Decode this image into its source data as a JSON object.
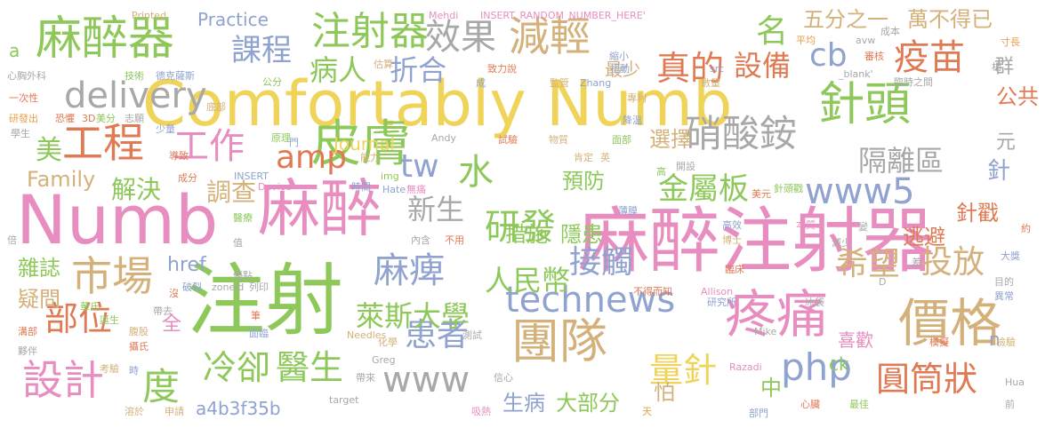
{
  "palette": [
    "#f0d45a",
    "#8ec85a",
    "#e88dc0",
    "#e07a55",
    "#d4b17a",
    "#8fa2d0",
    "#a8a8a8",
    "#e5a04a"
  ],
  "words": [
    {
      "text": "Comfortably Numb",
      "color": "#f0d45a"
    },
    {
      "text": "麻醉注射器",
      "color": "#e88dc0"
    },
    {
      "text": "Numb",
      "color": "#e88dc0"
    },
    {
      "text": "麻醉",
      "color": "#e88dc0"
    },
    {
      "text": "注射",
      "color": "#8ec85a"
    },
    {
      "text": "麻醉器",
      "color": "#8ec85a"
    },
    {
      "text": "皮膚",
      "color": "#8ec85a"
    },
    {
      "text": "針頭",
      "color": "#8ec85a"
    },
    {
      "text": "疼痛",
      "color": "#e88dc0"
    },
    {
      "text": "價格",
      "color": "#d4b17a"
    },
    {
      "text": "團隊",
      "color": "#d4b17a"
    },
    {
      "text": "硝酸銨",
      "color": "#a8a8a8"
    },
    {
      "text": "減輕",
      "color": "#d4b17a"
    },
    {
      "text": "注射器",
      "color": "#8ec85a"
    },
    {
      "text": "工程",
      "color": "#e07a55"
    },
    {
      "text": "市場",
      "color": "#d4b17a"
    },
    {
      "text": "www5",
      "color": "#8fa2d0"
    },
    {
      "text": "technews",
      "color": "#8fa2d0"
    },
    {
      "text": "www",
      "color": "#a8a8a8"
    },
    {
      "text": "delivery",
      "color": "#a8a8a8"
    },
    {
      "text": "疫苗",
      "color": "#e07a55"
    },
    {
      "text": "量針",
      "color": "#f0d45a"
    },
    {
      "text": "圓筒狀",
      "color": "#e07a55"
    },
    {
      "text": "麻痺",
      "color": "#8fa2d0"
    },
    {
      "text": "研發",
      "color": "#8ec85a"
    },
    {
      "text": "真的",
      "color": "#e07a55"
    },
    {
      "text": "金屬板",
      "color": "#8ec85a"
    },
    {
      "text": "效果",
      "color": "#a8a8a8"
    },
    {
      "text": "工作",
      "color": "#e88dc0"
    },
    {
      "text": "設計",
      "color": "#e88dc0"
    },
    {
      "text": "部位",
      "color": "#e07a55"
    },
    {
      "text": "冷卻",
      "color": "#8ec85a"
    },
    {
      "text": "醫生",
      "color": "#8ec85a"
    },
    {
      "text": "患者",
      "color": "#8fa2d0"
    },
    {
      "text": "接觸",
      "color": "#8fa2d0"
    },
    {
      "text": "希望",
      "color": "#d4b17a"
    },
    {
      "text": "投放",
      "color": "#d4b17a"
    },
    {
      "text": "php",
      "color": "#8fa2d0"
    },
    {
      "text": "萊斯大學",
      "color": "#8ec85a"
    },
    {
      "text": "人民幣",
      "color": "#8ec85a"
    },
    {
      "text": "隔離區",
      "color": "#a8a8a8"
    },
    {
      "text": "課程",
      "color": "#8fa2d0"
    },
    {
      "text": "amp",
      "color": "#e07a55"
    },
    {
      "text": "tw",
      "color": "#8fa2d0"
    },
    {
      "text": "水",
      "color": "#8ec85a"
    },
    {
      "text": "cb",
      "color": "#8fa2d0"
    },
    {
      "text": "名",
      "color": "#8ec85a"
    },
    {
      "text": "病人",
      "color": "#8ec85a"
    },
    {
      "text": "折合",
      "color": "#8fa2d0"
    },
    {
      "text": "設備",
      "color": "#e07a55"
    },
    {
      "text": "新生",
      "color": "#a8a8a8"
    },
    {
      "text": "度",
      "color": "#8ec85a"
    },
    {
      "text": "解決",
      "color": "#8ec85a"
    },
    {
      "text": "調查",
      "color": "#d4b17a"
    },
    {
      "text": "Family",
      "color": "#d4b17a"
    },
    {
      "text": "Journal",
      "color": "#f0d45a"
    },
    {
      "text": "Practice",
      "color": "#8fa2d0"
    },
    {
      "text": "a4b3f35b",
      "color": "#8fa2d0"
    },
    {
      "text": "措施",
      "color": "#8ec85a"
    },
    {
      "text": "隱患",
      "color": "#8ec85a"
    },
    {
      "text": "預防",
      "color": "#8ec85a"
    },
    {
      "text": "選擇",
      "color": "#d4b17a"
    },
    {
      "text": "逃避",
      "color": "#e07a55"
    },
    {
      "text": "針戳",
      "color": "#e07a55"
    },
    {
      "text": "公共",
      "color": "#e07a55"
    },
    {
      "text": "五分之一",
      "color": "#d4b17a"
    },
    {
      "text": "萬不得已",
      "color": "#d4b17a"
    },
    {
      "text": "最少",
      "color": "#d4b17a"
    },
    {
      "text": "雜誌",
      "color": "#8ec85a"
    },
    {
      "text": "疑問",
      "color": "#d4b17a"
    },
    {
      "text": "href",
      "color": "#8fa2d0"
    },
    {
      "text": "喜歡",
      "color": "#e88dc0"
    },
    {
      "text": "ck",
      "color": "#8ec85a"
    },
    {
      "text": "怕",
      "color": "#d4b17a"
    },
    {
      "text": "生病",
      "color": "#8fa2d0"
    },
    {
      "text": "大部分",
      "color": "#8ec85a"
    },
    {
      "text": "中",
      "color": "#8ec85a"
    },
    {
      "text": "美",
      "color": "#8ec85a"
    },
    {
      "text": "針",
      "color": "#8fa2d0"
    },
    {
      "text": "元",
      "color": "#a8a8a8"
    },
    {
      "text": "群",
      "color": "#a8a8a8"
    },
    {
      "text": "a",
      "color": "#8ec85a"
    },
    {
      "text": "n",
      "color": "#8fa2d0"
    },
    {
      "text": "全",
      "color": "#e88dc0"
    },
    {
      "text": "Printed",
      "color": "#d4b17a"
    },
    {
      "text": "Mehdi",
      "color": "#e88dc0"
    },
    {
      "text": "INSERT_RANDOM_NUMBER_HERE'",
      "color": "#e88dc0"
    },
    {
      "text": "平均",
      "color": "#e5a04a"
    },
    {
      "text": "avw",
      "color": "#a8a8a8"
    },
    {
      "text": "成本",
      "color": "#a8a8a8"
    },
    {
      "text": "寸長",
      "color": "#e5a04a"
    },
    {
      "text": "審核",
      "color": "#e07a55"
    },
    {
      "text": "相",
      "color": "#a8a8a8"
    },
    {
      "text": "臨時之間",
      "color": "#a8a8a8"
    },
    {
      "text": "心胸外科",
      "color": "#a8a8a8"
    },
    {
      "text": "技術",
      "color": "#8ec85a"
    },
    {
      "text": "德克薩斯",
      "color": "#8fa2d0"
    },
    {
      "text": "估算",
      "color": "#d4b17a"
    },
    {
      "text": "致力說",
      "color": "#e07a55"
    },
    {
      "text": "扭動",
      "color": "#8fa2d0"
    },
    {
      "text": "src",
      "color": "#8fa2d0"
    },
    {
      "text": "數量",
      "color": "#d4b17a"
    },
    {
      "text": "_blank'",
      "color": "#a8a8a8"
    },
    {
      "text": "一次性",
      "color": "#e07a55"
    },
    {
      "text": "公分",
      "color": "#8ec85a"
    },
    {
      "text": "成",
      "color": "#8fa2d0"
    },
    {
      "text": "監管",
      "color": "#d4b17a"
    },
    {
      "text": "Zhang",
      "color": "#8fa2d0"
    },
    {
      "text": "專利",
      "color": "#d4b17a"
    },
    {
      "text": "研發出",
      "color": "#e5a04a"
    },
    {
      "text": "恐懼",
      "color": "#e07a55"
    },
    {
      "text": "3D",
      "color": "#e07a55"
    },
    {
      "text": "美分",
      "color": "#8ec85a"
    },
    {
      "text": "志願",
      "color": "#a8a8a8"
    },
    {
      "text": "底部",
      "color": "#d4b17a"
    },
    {
      "text": "降溫",
      "color": "#8fa2d0"
    },
    {
      "text": "學生",
      "color": "#a8a8a8"
    },
    {
      "text": "少量",
      "color": "#8fa2d0"
    },
    {
      "text": "原理",
      "color": "#8ec85a"
    },
    {
      "text": "門",
      "color": "#8fa2d0"
    },
    {
      "text": "Andy",
      "color": "#a8a8a8"
    },
    {
      "text": "試驗",
      "color": "#e07a55"
    },
    {
      "text": "物質",
      "color": "#d4b17a"
    },
    {
      "text": "面部",
      "color": "#8ec85a"
    },
    {
      "text": "開設",
      "color": "#a8a8a8"
    },
    {
      "text": "導致",
      "color": "#e07a55"
    },
    {
      "text": "能力",
      "color": "#d4b17a"
    },
    {
      "text": "肯定",
      "color": "#d4b17a"
    },
    {
      "text": "英",
      "color": "#d4b17a"
    },
    {
      "text": "成分",
      "color": "#e07a55"
    },
    {
      "text": "INSERT",
      "color": "#8fa2d0"
    },
    {
      "text": "img",
      "color": "#8ec85a"
    },
    {
      "text": "高",
      "color": "#8ec85a"
    },
    {
      "text": "Device",
      "color": "#e88dc0"
    },
    {
      "text": "時間",
      "color": "#8fa2d0"
    },
    {
      "text": "Hate",
      "color": "#8fa2d0"
    },
    {
      "text": "無痛",
      "color": "#e88dc0"
    },
    {
      "text": "美元",
      "color": "#e07a55"
    },
    {
      "text": "針頭戳",
      "color": "#8ec85a"
    },
    {
      "text": "薄膜",
      "color": "#8fa2d0"
    },
    {
      "text": "醫療",
      "color": "#8ec85a"
    },
    {
      "text": "高效",
      "color": "#8fa2d0"
    },
    {
      "text": "本質",
      "color": "#e88dc0"
    },
    {
      "text": "倍",
      "color": "#a8a8a8"
    },
    {
      "text": "值",
      "color": "#a8a8a8"
    },
    {
      "text": "內含",
      "color": "#a8a8a8"
    },
    {
      "text": "不用",
      "color": "#e07a55"
    },
    {
      "text": "博士",
      "color": "#d4b17a"
    },
    {
      "text": "減少",
      "color": "#a8a8a8"
    },
    {
      "text": "變",
      "color": "#a8a8a8"
    },
    {
      "text": "約",
      "color": "#e07a55"
    },
    {
      "text": "大獎",
      "color": "#8fa2d0"
    },
    {
      "text": "差",
      "color": "#a8a8a8"
    },
    {
      "text": "破裂",
      "color": "#8fa2d0"
    },
    {
      "text": "zoneid",
      "color": "#a8a8a8"
    },
    {
      "text": "列印",
      "color": "#a8a8a8"
    },
    {
      "text": "優點",
      "color": "#a8a8a8"
    },
    {
      "text": "臨床",
      "color": "#e07a55"
    },
    {
      "text": "D",
      "color": "#a8a8a8"
    },
    {
      "text": "目的",
      "color": "#a8a8a8"
    },
    {
      "text": "沒",
      "color": "#e07a55"
    },
    {
      "text": "Allison",
      "color": "#e88dc0"
    },
    {
      "text": "不得而知",
      "color": "#e07a55"
    },
    {
      "text": "異常",
      "color": "#8fa2d0"
    },
    {
      "text": "研究所",
      "color": "#8fa2d0"
    },
    {
      "text": "冰袋",
      "color": "#a8a8a8"
    },
    {
      "text": "華氏",
      "color": "#8ec85a"
    },
    {
      "text": "帶去",
      "color": "#a8a8a8"
    },
    {
      "text": "筆",
      "color": "#e07a55"
    },
    {
      "text": "誕生",
      "color": "#8ec85a"
    },
    {
      "text": "腹股",
      "color": "#d4b17a"
    },
    {
      "text": "面臨",
      "color": "#8fa2d0"
    },
    {
      "text": "Mike",
      "color": "#a8a8a8"
    },
    {
      "text": "溝部",
      "color": "#e07a55"
    },
    {
      "text": "攝氏",
      "color": "#e07a55"
    },
    {
      "text": "化學",
      "color": "#d4b17a"
    },
    {
      "text": "測試",
      "color": "#a8a8a8"
    },
    {
      "text": "Needles",
      "color": "#d4b17a"
    },
    {
      "text": "模擬",
      "color": "#e07a55"
    },
    {
      "text": "檢驗",
      "color": "#d4b17a"
    },
    {
      "text": "夥伴",
      "color": "#a8a8a8"
    },
    {
      "text": "考驗",
      "color": "#d4b17a"
    },
    {
      "text": "Greg",
      "color": "#a8a8a8"
    },
    {
      "text": "Razadi",
      "color": "#e88dc0"
    },
    {
      "text": "時",
      "color": "#8fa2d0"
    },
    {
      "text": "帶來",
      "color": "#a8a8a8"
    },
    {
      "text": "信心",
      "color": "#a8a8a8"
    },
    {
      "text": "Hua",
      "color": "#a8a8a8"
    },
    {
      "text": "溶於",
      "color": "#d4b17a"
    },
    {
      "text": "申請",
      "color": "#d4b17a"
    },
    {
      "text": "target",
      "color": "#a8a8a8"
    },
    {
      "text": "吸熱",
      "color": "#e88dc0"
    },
    {
      "text": "天",
      "color": "#e5a04a"
    },
    {
      "text": "部門",
      "color": "#8fa2d0"
    },
    {
      "text": "心臟",
      "color": "#e07a55"
    },
    {
      "text": "最佳",
      "color": "#8ec85a"
    },
    {
      "text": "前",
      "color": "#a8a8a8"
    },
    {
      "text": "縮小",
      "color": "#8fa2d0"
    }
  ]
}
